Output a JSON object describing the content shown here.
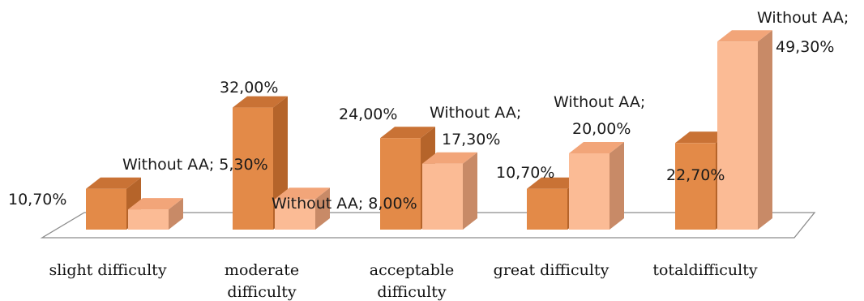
{
  "chart_data": {
    "type": "bar",
    "style": "3d-clustered-column",
    "categories": [
      "slight difficulty",
      "moderate difficulty",
      "acceptable difficulty",
      "great difficulty",
      "totaldifficulty"
    ],
    "series": [
      {
        "values": [
          10.7,
          32.0,
          24.0,
          10.7,
          22.7
        ]
      },
      {
        "name": "Without AA",
        "values": [
          5.3,
          8.0,
          17.3,
          20.0,
          49.3
        ]
      }
    ],
    "data_labels": [
      [
        "10,70%",
        "32,00%",
        "24,00%",
        "10,70%",
        "22,70%"
      ],
      [
        "Without AA; 5,30%",
        "Without AA; 8,00%",
        "Without AA; 17,30%",
        "Without AA; 20,00%",
        "Without AA; 49,30%"
      ]
    ],
    "value_unit": "%",
    "ylim": [
      0,
      55
    ],
    "title": "",
    "xlabel": "",
    "ylabel": "",
    "grid": false,
    "legend": "none",
    "colors": {
      "series_1": {
        "front": "#e38a48",
        "side": "#b5642a",
        "top": "#c97235"
      },
      "series_2": {
        "front": "#fbbb95",
        "side": "#c88a67",
        "top": "#f2a579"
      },
      "floor": "#ffffff",
      "floor_outline": "#8c8c8c"
    }
  }
}
